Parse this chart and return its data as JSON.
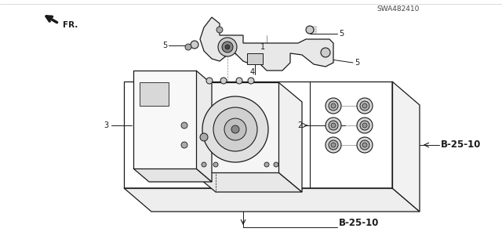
{
  "background_color": "#ffffff",
  "fig_width": 6.4,
  "fig_height": 3.19,
  "dpi": 100,
  "labels": {
    "b25_10_top": "B-25-10",
    "b25_10_right": "B-25-10",
    "part1": "1",
    "part2": "2",
    "part3": "3",
    "part4": "4",
    "part5a": "5",
    "part5b": "5",
    "part5c": "5",
    "part_number": "SWA482410"
  },
  "line_color": "#1a1a1a",
  "text_color": "#1a1a1a",
  "label_fontsize": 7.0
}
